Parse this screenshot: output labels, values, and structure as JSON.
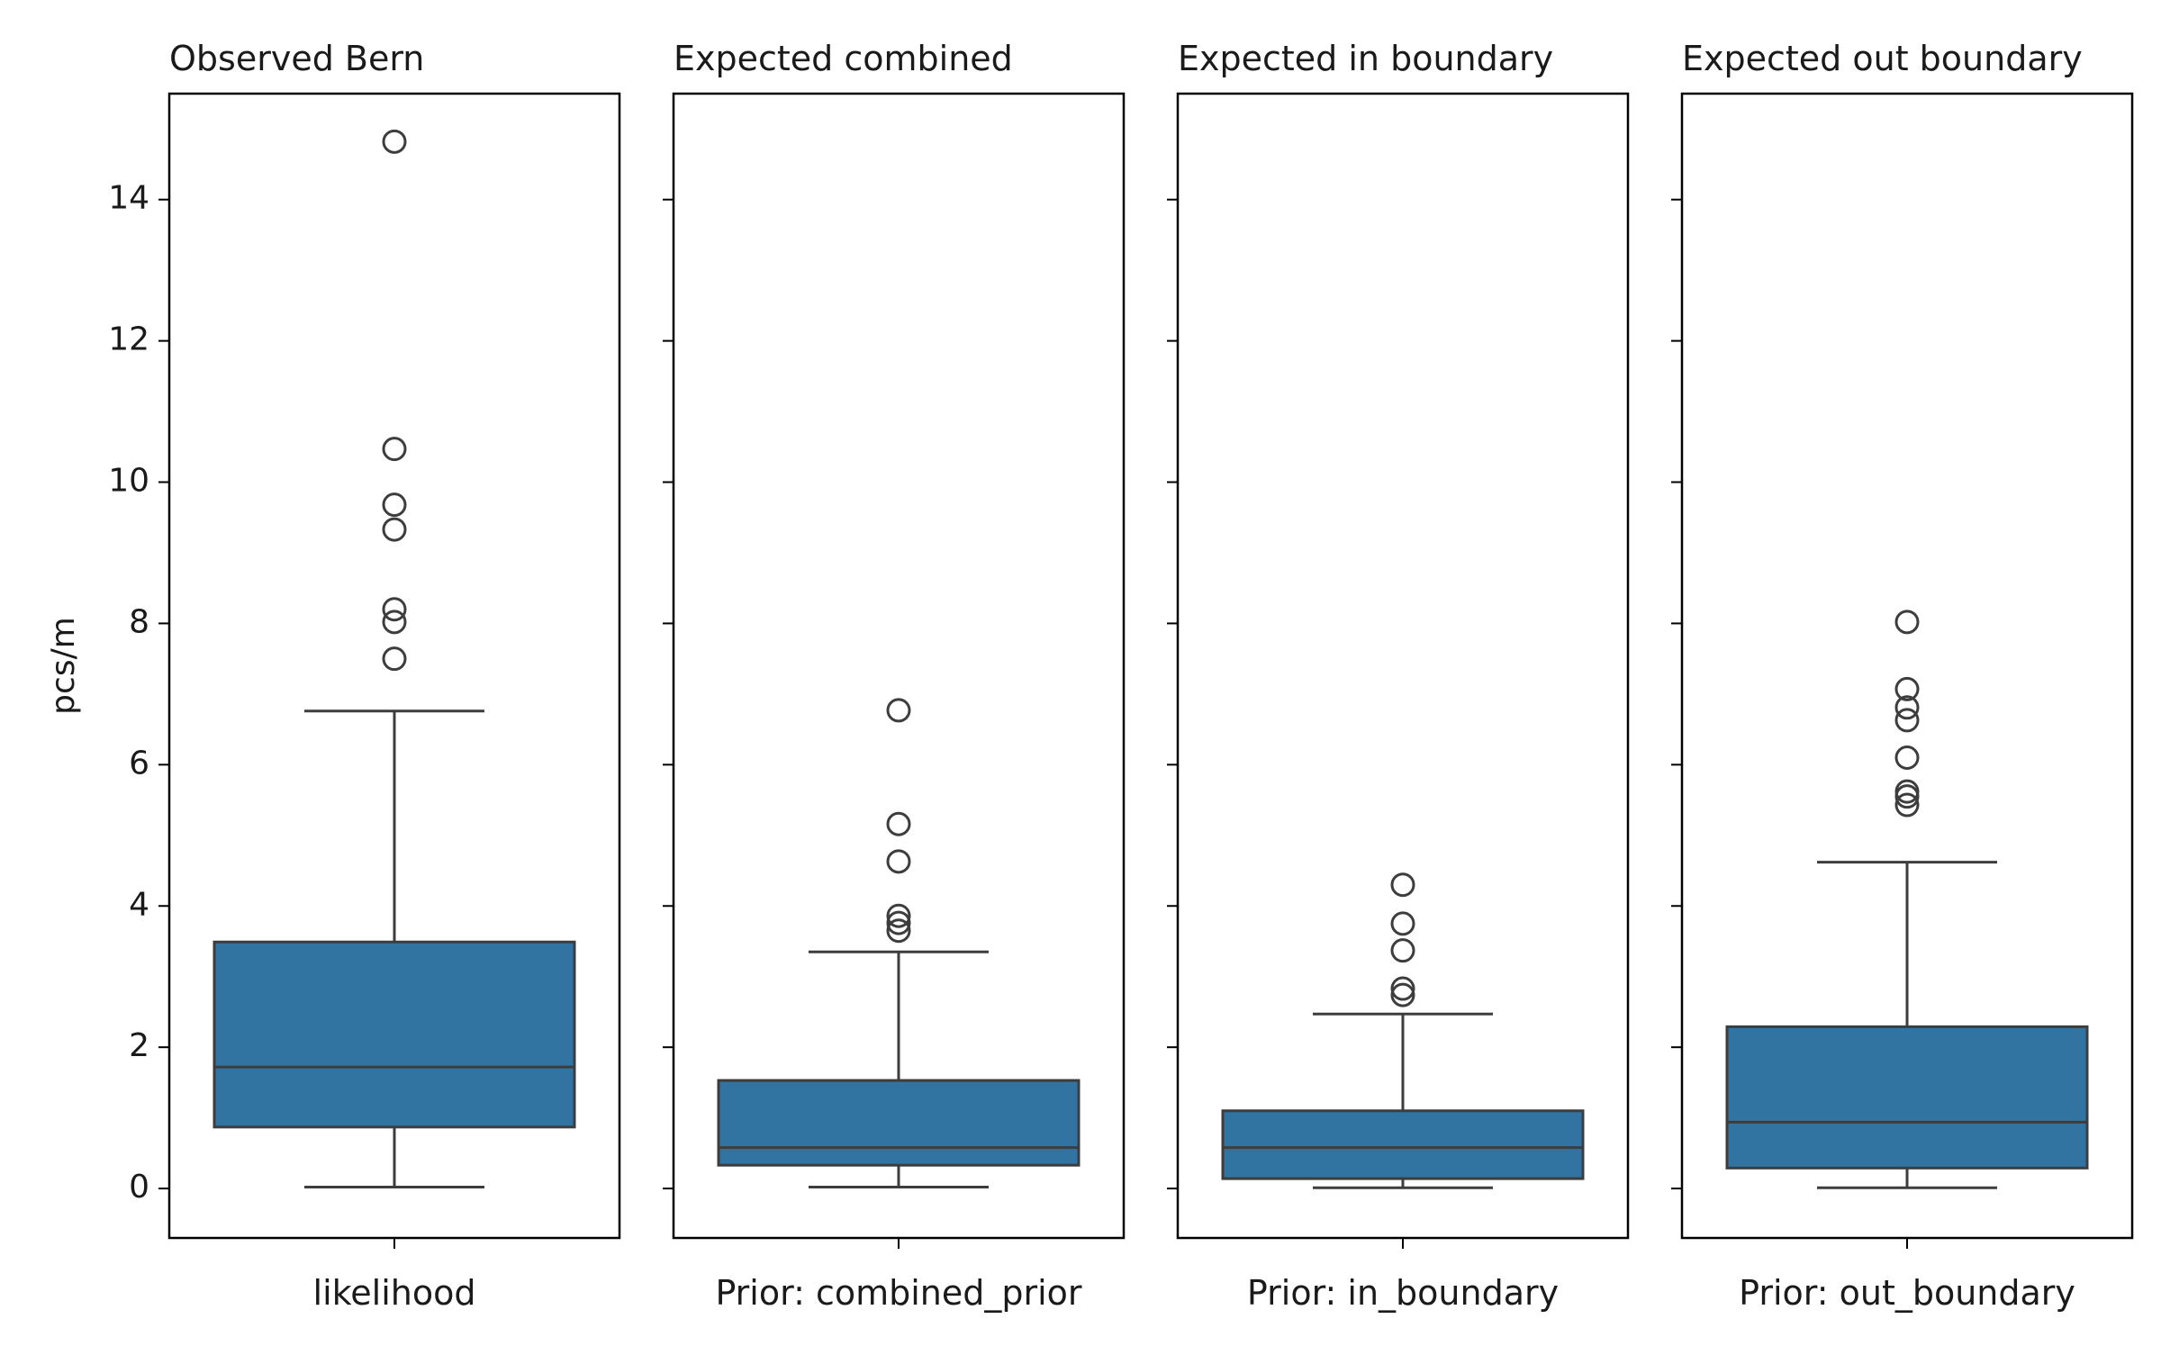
{
  "chart_data": {
    "type": "box",
    "ylabel": "pcs/m",
    "ylim": [
      -0.7,
      15.5
    ],
    "yticks": [
      0,
      2,
      4,
      6,
      8,
      10,
      12,
      14
    ],
    "box_color": "#3274a1",
    "line_color": "#3d3d3d",
    "panels": [
      {
        "title": "Observed Bern",
        "category": "likelihood",
        "whisker_low": 0.02,
        "q1": 0.87,
        "median": 1.72,
        "q3": 3.49,
        "whisker_high": 6.76,
        "outliers": [
          7.5,
          8.02,
          8.2,
          9.33,
          9.68,
          10.47,
          14.82
        ]
      },
      {
        "title": "Expected combined",
        "category": "Prior: combined_prior",
        "whisker_low": 0.02,
        "q1": 0.33,
        "median": 0.58,
        "q3": 1.53,
        "whisker_high": 3.35,
        "outliers": [
          3.65,
          3.76,
          3.86,
          4.63,
          5.16,
          6.77
        ]
      },
      {
        "title": "Expected in boundary",
        "category": "Prior: in_boundary",
        "whisker_low": 0.01,
        "q1": 0.14,
        "median": 0.58,
        "q3": 1.1,
        "whisker_high": 2.47,
        "outliers": [
          2.74,
          2.83,
          3.37,
          3.75,
          4.3
        ]
      },
      {
        "title": "Expected out boundary",
        "category": "Prior: out_boundary",
        "whisker_low": 0.01,
        "q1": 0.29,
        "median": 0.94,
        "q3": 2.29,
        "whisker_high": 4.62,
        "outliers": [
          5.43,
          5.55,
          5.62,
          6.1,
          6.63,
          6.81,
          7.07,
          8.02
        ]
      }
    ]
  }
}
